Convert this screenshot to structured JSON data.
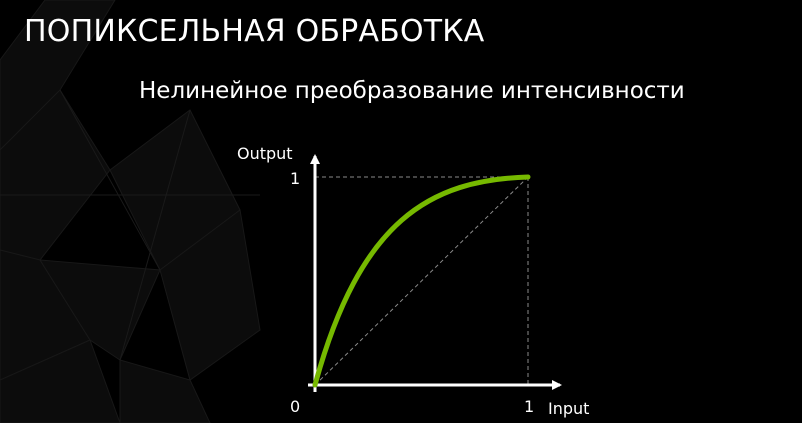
{
  "slide": {
    "title": "ПОПИКСЕЛЬНАЯ ОБРАБОТКА",
    "subtitle": "Нелинейное преобразование интенсивности"
  },
  "diagram": {
    "y_axis_label": "Output",
    "x_axis_label": "Input",
    "y_tick_label": "1",
    "x_tick_label": "1",
    "origin_label": "0",
    "curve_color": "#76b900",
    "background_color": "#000000"
  }
}
